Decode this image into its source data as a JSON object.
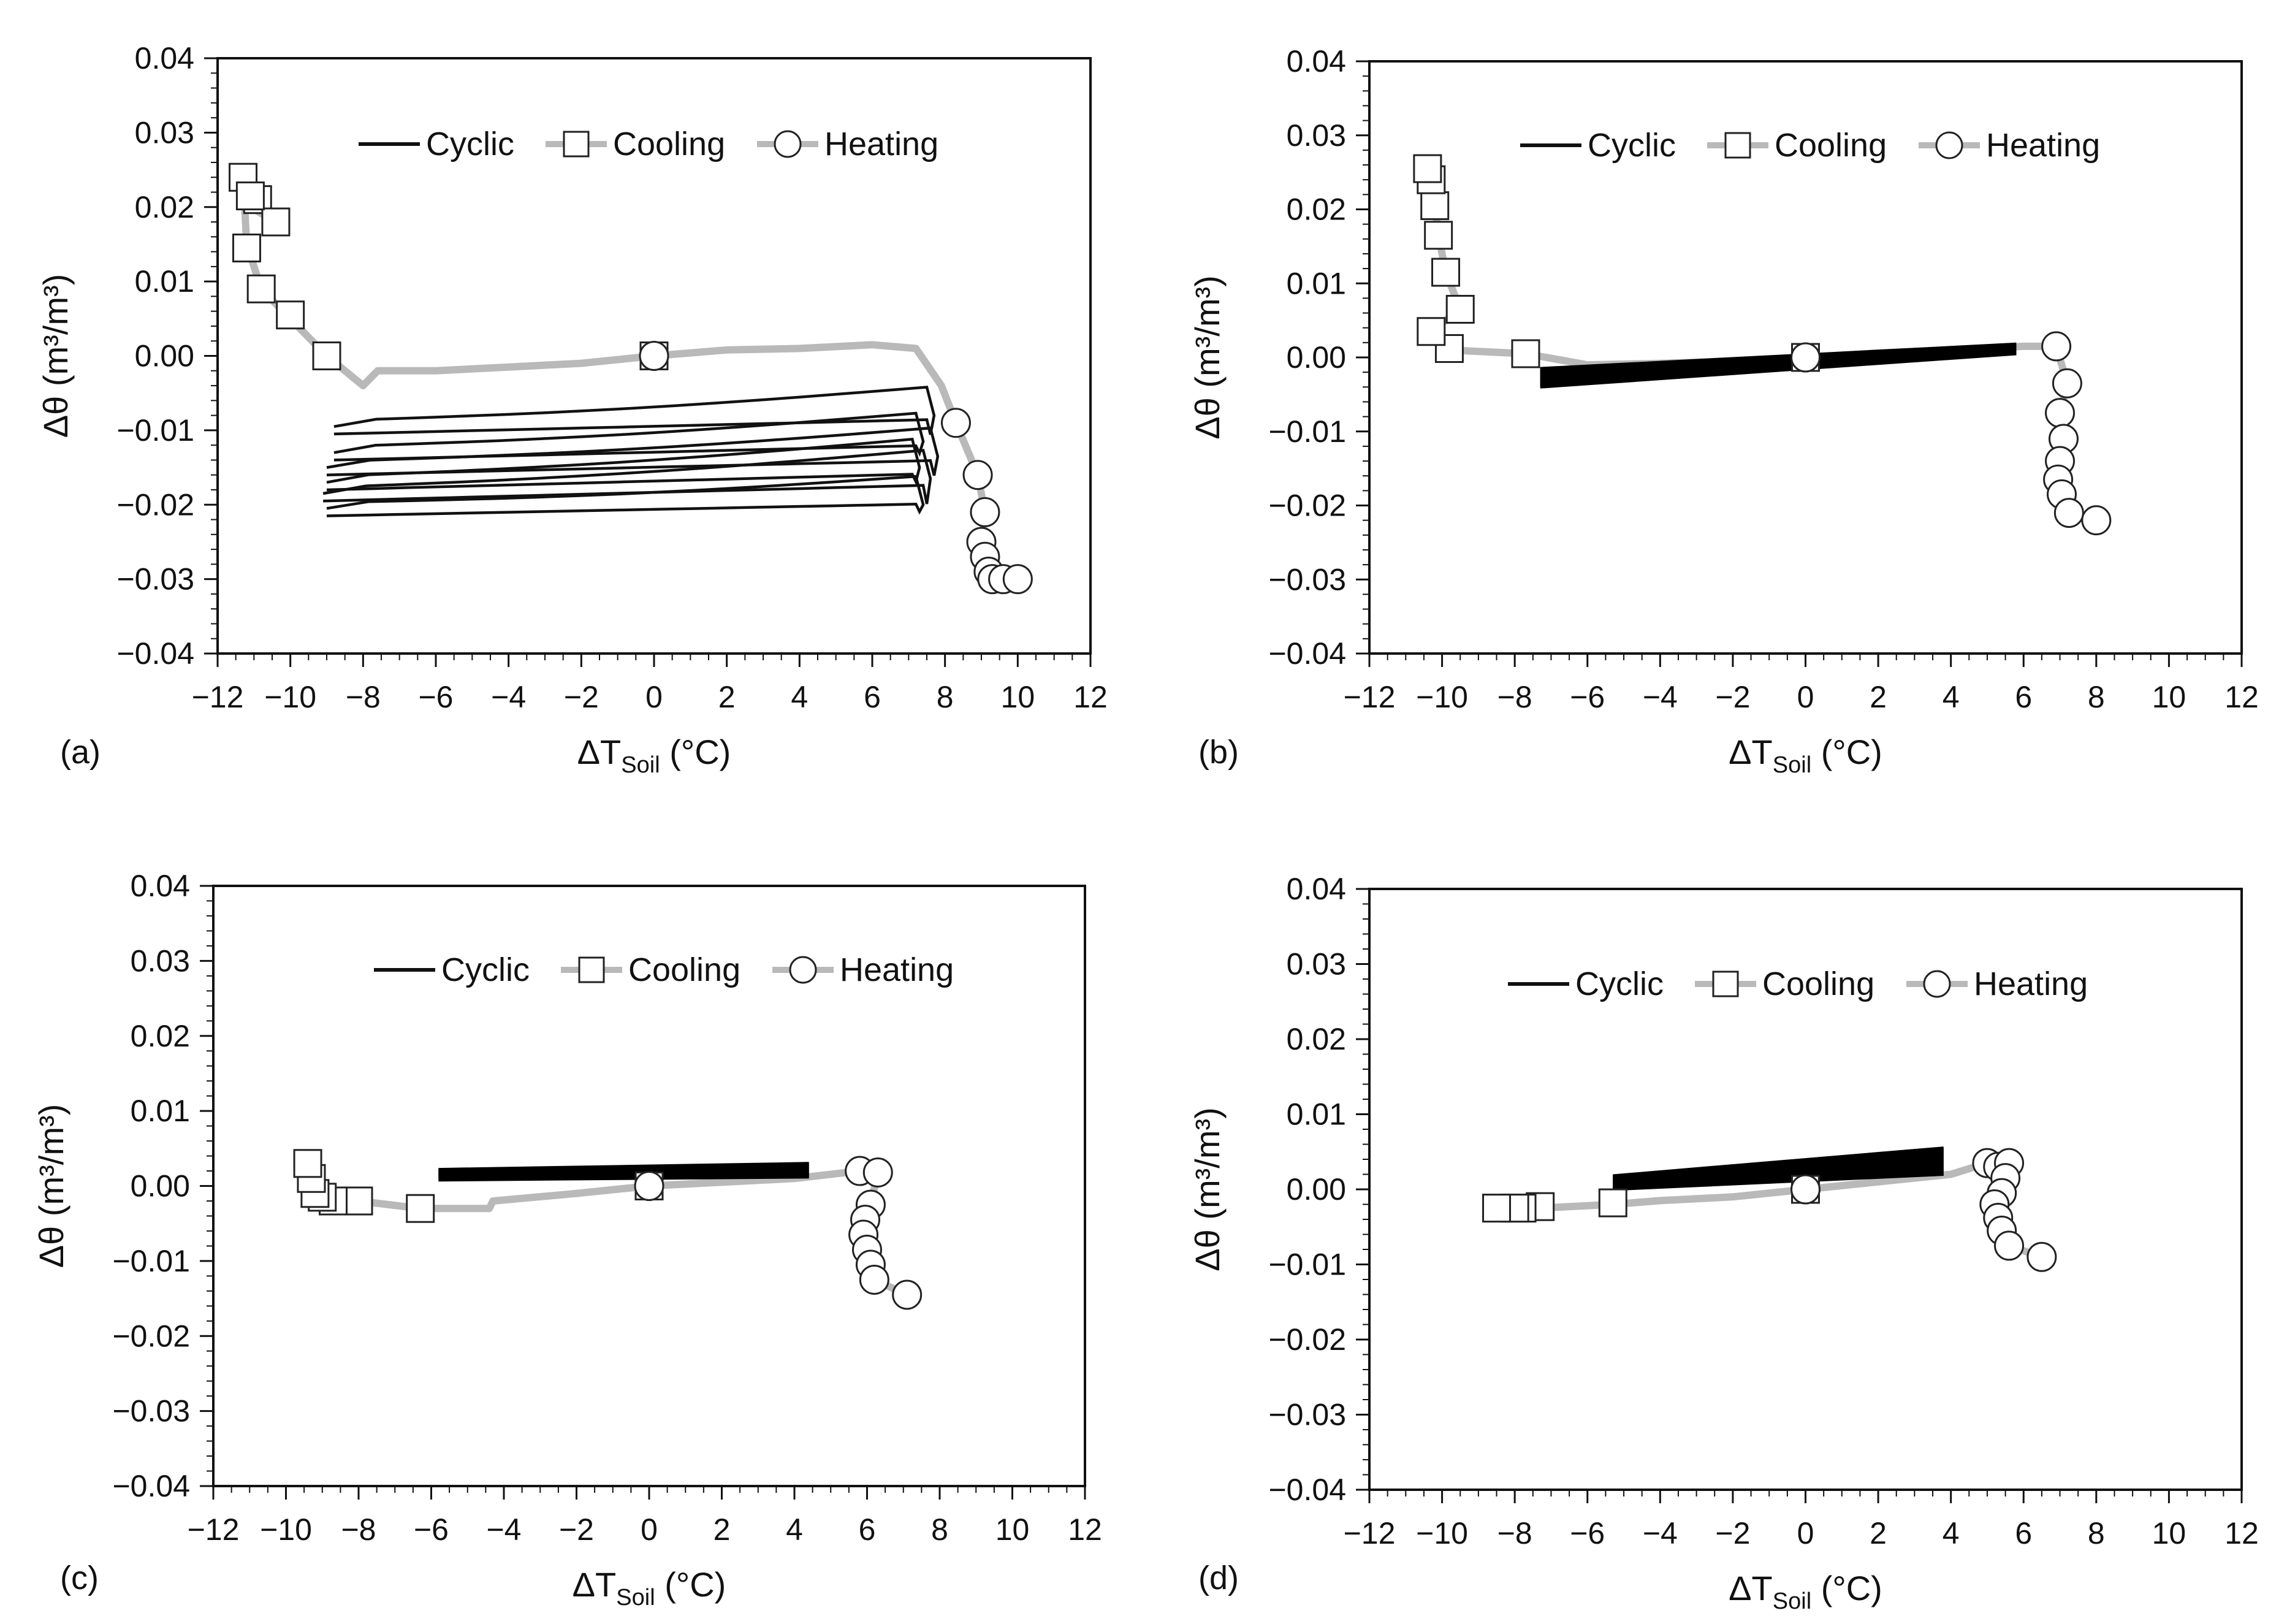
{
  "chart_data": [
    {
      "panel": "(a)",
      "type": "scatter",
      "xlabel": "ΔT",
      "xlabel_sub": "Soil",
      "xlabel_unit": "(°C)",
      "ylabel": "Δθ (m³/m³)",
      "xlim": [
        -12,
        12
      ],
      "ylim": [
        -0.04,
        0.04
      ],
      "xticks": [
        "−12",
        "−10",
        "−8",
        "−6",
        "−4",
        "−2",
        "0",
        "2",
        "4",
        "6",
        "8",
        "10",
        "12"
      ],
      "yticks": [
        "0.04",
        "0.03",
        "0.02",
        "0.01",
        "0.00",
        "−0.01",
        "−0.02",
        "−0.03",
        "−0.04"
      ],
      "legend": [
        "Cyclic",
        "Cooling",
        "Heating"
      ],
      "series": [
        {
          "name": "Cooling",
          "x": [
            0,
            -2,
            -4,
            -6,
            -7.6,
            -8,
            -9,
            -10,
            -10.8,
            -11.2,
            -11.3,
            -10.9,
            -10.4,
            -11.1
          ],
          "y": [
            0,
            -0.001,
            -0.0015,
            -0.002,
            -0.002,
            -0.004,
            0,
            0.005,
            0.009,
            0.015,
            0.024,
            0.021,
            0.018,
            0.02
          ],
          "markers_x": [
            0,
            -9,
            -10,
            -10.8,
            -11.2,
            -11.3,
            -10.9,
            -10.4,
            -11.1
          ],
          "markers_y": [
            0,
            0,
            0.0055,
            0.009,
            0.0145,
            0.024,
            0.021,
            0.018,
            0.0215
          ]
        },
        {
          "name": "Heating",
          "x": [
            0,
            2,
            4,
            6,
            7.2,
            7.9,
            8.3,
            8.9,
            9.1,
            9.0,
            9.1,
            9.2,
            9.3,
            9.6,
            10.0
          ],
          "y": [
            0,
            0.0008,
            0.001,
            0.0015,
            0.001,
            -0.004,
            -0.009,
            -0.016,
            -0.021,
            -0.025,
            -0.027,
            -0.029,
            -0.03,
            -0.03,
            -0.03
          ],
          "markers_x": [
            0,
            8.3,
            8.9,
            9.1,
            9.0,
            9.1,
            9.2,
            9.3,
            9.6,
            10.0
          ],
          "markers_y": [
            0,
            -0.009,
            -0.016,
            -0.021,
            -0.025,
            -0.027,
            -0.029,
            -0.03,
            -0.03,
            -0.03
          ]
        },
        {
          "name": "Cyclic",
          "loops": [
            {
              "x1": -8.8,
              "x2": 7.5,
              "y_low": -0.0105,
              "y_high": -0.005,
              "drop": -0.002
            },
            {
              "x1": -8.8,
              "x2": 7.2,
              "y_low": -0.014,
              "y_high": -0.0085,
              "drop": -0.001
            },
            {
              "x1": -9.0,
              "x2": 7.6,
              "y_low": -0.016,
              "y_high": -0.0105,
              "drop": -0.002
            },
            {
              "x1": -9.0,
              "x2": 7.1,
              "y_low": -0.018,
              "y_high": -0.012,
              "drop": -0.001
            },
            {
              "x1": -9.1,
              "x2": 7.4,
              "y_low": -0.0195,
              "y_high": -0.0135,
              "drop": -0.0025
            },
            {
              "x1": -9.0,
              "x2": 7.2,
              "y_low": -0.0215,
              "y_high": -0.017,
              "drop": -0.001
            }
          ]
        }
      ]
    },
    {
      "panel": "(b)",
      "type": "scatter",
      "xlabel": "ΔT",
      "xlabel_sub": "Soil",
      "xlabel_unit": "(°C)",
      "ylabel": "Δθ (m³/m³)",
      "xlim": [
        -12,
        12
      ],
      "ylim": [
        -0.04,
        0.04
      ],
      "xticks": [
        "−12",
        "−10",
        "−8",
        "−6",
        "−4",
        "−2",
        "0",
        "2",
        "4",
        "6",
        "8",
        "10",
        "12"
      ],
      "yticks": [
        "0.04",
        "0.03",
        "0.02",
        "0.01",
        "0.00",
        "−0.01",
        "−0.02",
        "−0.03",
        "−0.04"
      ],
      "legend": [
        "Cyclic",
        "Cooling",
        "Heating"
      ],
      "series": [
        {
          "name": "Cooling",
          "x": [
            0,
            -2,
            -4,
            -6,
            -7.7,
            -9.8,
            -10.3,
            -9.5,
            -9.9,
            -10.1,
            -10.2,
            -10.3,
            -10.4
          ],
          "y": [
            0,
            -0.0005,
            -0.0008,
            -0.001,
            0.0005,
            0.001,
            0.0035,
            0.0065,
            0.0115,
            0.0165,
            0.0205,
            0.024,
            0.0255
          ],
          "markers_x": [
            0,
            -7.7,
            -9.8,
            -10.3,
            -9.5,
            -9.9,
            -10.1,
            -10.2,
            -10.3,
            -10.4
          ],
          "markers_y": [
            0,
            0.0005,
            0.0012,
            0.0035,
            0.0065,
            0.0115,
            0.0165,
            0.0205,
            0.024,
            0.0255
          ]
        },
        {
          "name": "Heating",
          "x": [
            0,
            2,
            4,
            6,
            6.9,
            7.2,
            7.0,
            7.1,
            7.0,
            6.95,
            7.05,
            7.25,
            8.0
          ],
          "y": [
            0,
            0.0006,
            0.001,
            0.0015,
            0.0015,
            -0.0035,
            -0.0075,
            -0.011,
            -0.014,
            -0.0165,
            -0.0185,
            -0.021,
            -0.022
          ],
          "markers_x": [
            0,
            6.9,
            7.2,
            7.0,
            7.1,
            7.0,
            6.95,
            7.05,
            7.25,
            8.0
          ],
          "markers_y": [
            0,
            0.0015,
            -0.0035,
            -0.0075,
            -0.011,
            -0.014,
            -0.0165,
            -0.0185,
            -0.021,
            -0.022
          ]
        },
        {
          "name": "Cyclic",
          "band": {
            "x1": -7.3,
            "x2": 5.8,
            "y_bot_left": -0.004,
            "y_top_left": -0.0015,
            "y_bot_right": 0.0005,
            "y_top_right": 0.0018,
            "lines": 9
          }
        }
      ]
    },
    {
      "panel": "(c)",
      "type": "scatter",
      "xlabel": "ΔT",
      "xlabel_sub": "Soil",
      "xlabel_unit": "(°C)",
      "ylabel": "Δθ (m³/m³)",
      "xlim": [
        -12,
        12
      ],
      "ylim": [
        -0.04,
        0.04
      ],
      "xticks": [
        "−12",
        "−10",
        "−8",
        "−6",
        "−4",
        "−2",
        "0",
        "2",
        "4",
        "6",
        "8",
        "10",
        "12"
      ],
      "yticks": [
        "0.04",
        "0.03",
        "0.02",
        "0.01",
        "0.00",
        "−0.01",
        "−0.02",
        "−0.03",
        "−0.04"
      ],
      "legend": [
        "Cyclic",
        "Cooling",
        "Heating"
      ],
      "series": [
        {
          "name": "Cooling",
          "x": [
            0,
            -2,
            -4.3,
            -4.4,
            -6.3,
            -8.0,
            -8.7,
            -9.0,
            -9.2,
            -9.3,
            -9.4
          ],
          "y": [
            0,
            -0.001,
            -0.002,
            -0.003,
            -0.003,
            -0.002,
            -0.002,
            -0.0015,
            -0.001,
            0.001,
            0.003
          ],
          "markers_x": [
            0,
            -6.3,
            -8.0,
            -8.7,
            -9.0,
            -9.2,
            -9.3,
            -9.4
          ],
          "markers_y": [
            0,
            -0.003,
            -0.002,
            -0.002,
            -0.0015,
            -0.001,
            0.001,
            0.003
          ]
        },
        {
          "name": "Heating",
          "x": [
            0,
            2,
            4,
            5.8,
            6.3,
            6.1,
            5.9,
            6.0,
            6.1,
            6.2,
            7.1
          ],
          "y": [
            0,
            0.0005,
            0.001,
            0.002,
            0.0018,
            -0.0025,
            -0.0065,
            -0.0095,
            -0.0105,
            -0.0125,
            -0.0145
          ],
          "markers_x": [
            0,
            5.8,
            6.3,
            6.1,
            5.95,
            5.9,
            6.0,
            6.1,
            6.2,
            7.1
          ],
          "markers_y": [
            0,
            0.002,
            0.0018,
            -0.0025,
            -0.0045,
            -0.0065,
            -0.0085,
            -0.0105,
            -0.0125,
            -0.0145
          ]
        },
        {
          "name": "Cyclic",
          "band": {
            "x1": -5.8,
            "x2": 4.4,
            "y_bot_left": 0.0008,
            "y_top_left": 0.0022,
            "y_bot_right": 0.0012,
            "y_top_right": 0.003,
            "lines": 7
          }
        }
      ]
    },
    {
      "panel": "(d)",
      "type": "scatter",
      "xlabel": "ΔT",
      "xlabel_sub": "Soil",
      "xlabel_unit": "(°C)",
      "ylabel": "Δθ (m³/m³)",
      "xlim": [
        -12,
        12
      ],
      "ylim": [
        -0.04,
        0.04
      ],
      "xticks": [
        "−12",
        "−10",
        "−8",
        "−6",
        "−4",
        "−2",
        "0",
        "2",
        "4",
        "6",
        "8",
        "10",
        "12"
      ],
      "yticks": [
        "0.04",
        "0.03",
        "0.02",
        "0.01",
        "0.00",
        "−0.01",
        "−0.02",
        "−0.03",
        "−0.04"
      ],
      "legend": [
        "Cyclic",
        "Cooling",
        "Heating"
      ],
      "series": [
        {
          "name": "Cooling",
          "x": [
            0,
            -2,
            -4,
            -5.3,
            -7.3,
            -7.8,
            -8.0,
            -8.5
          ],
          "y": [
            0,
            -0.001,
            -0.0015,
            -0.002,
            -0.0025,
            -0.0025,
            -0.0025,
            -0.0025
          ],
          "markers_x": [
            0,
            -5.3,
            -7.3,
            -7.8,
            -8.0,
            -8.5
          ],
          "markers_y": [
            0,
            -0.0018,
            -0.0023,
            -0.0025,
            -0.0025,
            -0.0025
          ]
        },
        {
          "name": "Heating",
          "x": [
            0,
            2,
            4,
            5.0,
            5.6,
            5.5,
            5.4,
            5.2,
            5.3,
            5.4,
            5.6,
            6.5
          ],
          "y": [
            0,
            0.001,
            0.002,
            0.0035,
            0.0035,
            0.0015,
            -0.0005,
            -0.002,
            -0.0038,
            -0.0055,
            -0.0075,
            -0.009
          ],
          "markers_x": [
            0,
            5.0,
            5.3,
            5.6,
            5.5,
            5.4,
            5.2,
            5.3,
            5.4,
            5.6,
            6.5
          ],
          "markers_y": [
            0,
            0.0035,
            0.003,
            0.0035,
            0.0015,
            -0.0005,
            -0.002,
            -0.0038,
            -0.0055,
            -0.0075,
            -0.009
          ]
        },
        {
          "name": "Cyclic",
          "band": {
            "x1": -5.3,
            "x2": 3.8,
            "y_bot_left": 0,
            "y_top_left": 0.0018,
            "y_bot_right": 0.002,
            "y_top_right": 0.0055,
            "lines": 9
          }
        }
      ]
    }
  ]
}
